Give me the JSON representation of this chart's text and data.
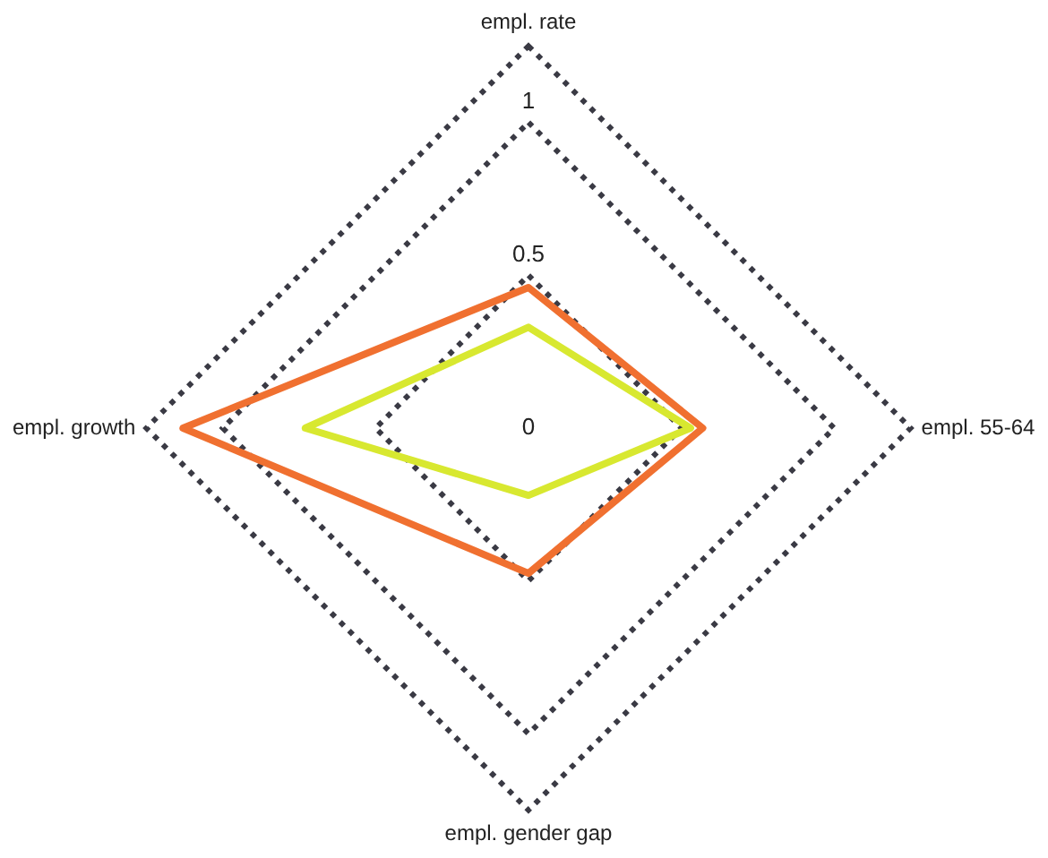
{
  "chart_data": {
    "type": "radar",
    "categories": [
      "empl. rate",
      "empl. 55-64",
      "empl. gender gap",
      "empl. growth"
    ],
    "series": [
      {
        "color": "#f07030",
        "values": [
          0.46,
          0.57,
          0.475,
          1.13
        ]
      },
      {
        "color": "#d8e830",
        "values": [
          0.33,
          0.53,
          0.22,
          0.73
        ]
      }
    ],
    "ylim": [
      0,
      1.25
    ],
    "yticks": [
      0,
      0.5,
      1
    ],
    "grid": true,
    "legend": false,
    "marker": "none",
    "line_style": "solid"
  }
}
